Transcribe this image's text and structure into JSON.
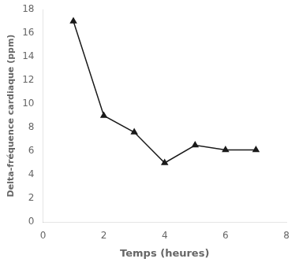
{
  "chart_data": {
    "type": "line",
    "x": [
      1,
      2,
      3,
      4,
      5,
      6,
      7
    ],
    "values": [
      17,
      9,
      7.6,
      5,
      6.5,
      6.1,
      6.1
    ],
    "xlabel": "Temps (heures)",
    "ylabel": "Delta-fréquence cardiaque (ppm)",
    "xlim": [
      0,
      8
    ],
    "ylim": [
      0,
      18
    ],
    "xticks": [
      0,
      2,
      4,
      6,
      8
    ],
    "yticks": [
      0,
      2,
      4,
      6,
      8,
      10,
      12,
      14,
      16,
      18
    ],
    "color": "#1a1a1a",
    "marker": "triangle",
    "grid": false
  }
}
